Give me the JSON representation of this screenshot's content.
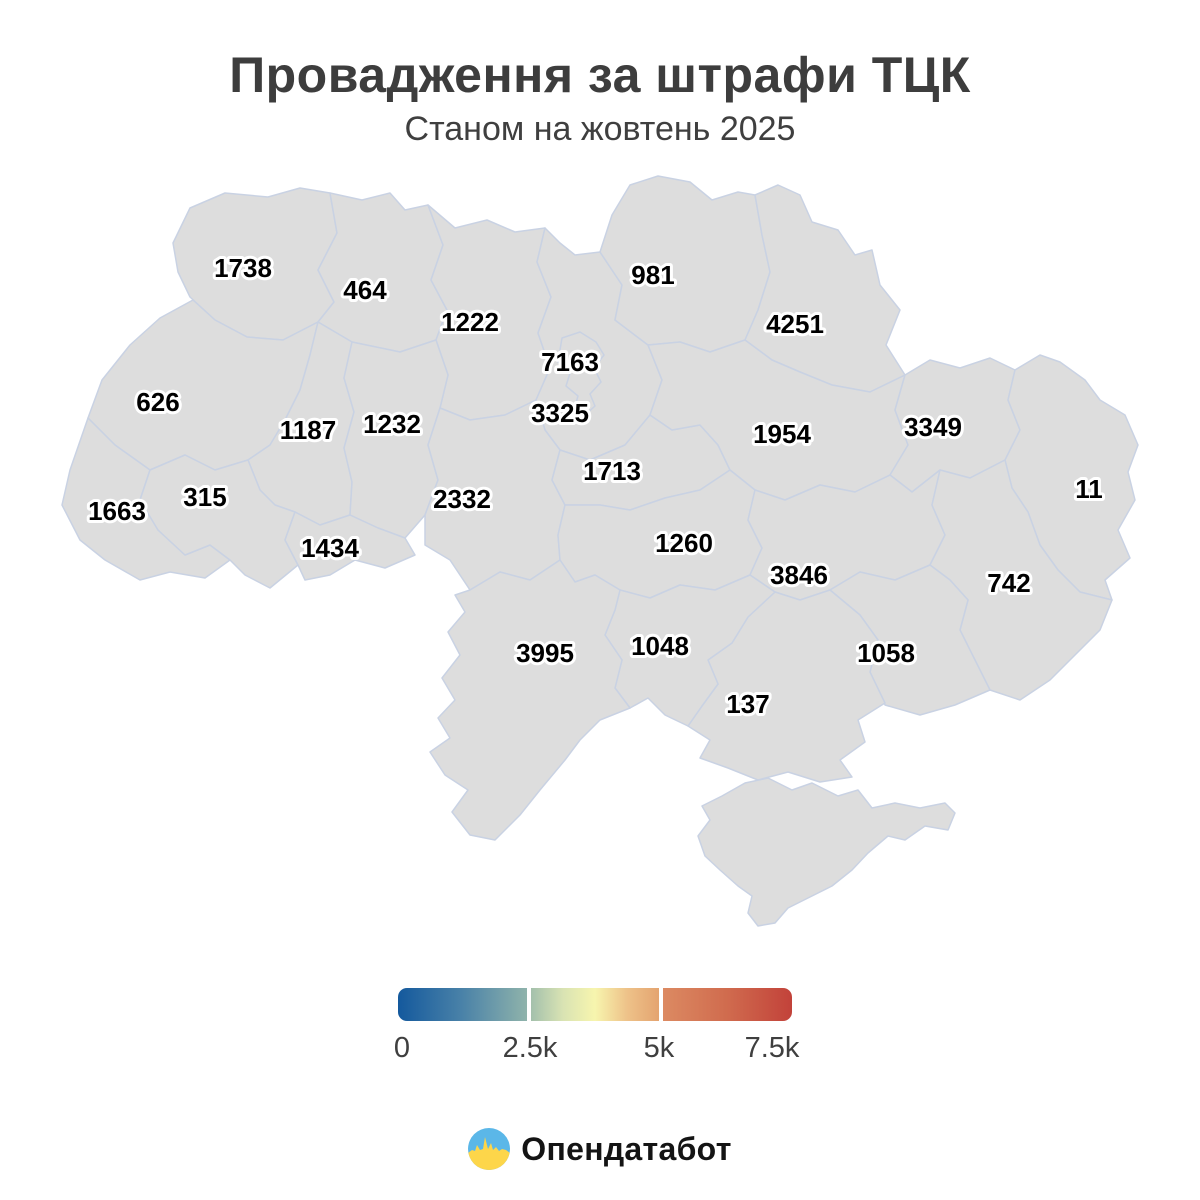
{
  "title": "Провадження за штрафи ТЦК",
  "subtitle": "Станом на жовтень 2025",
  "chart_data": {
    "type": "choropleth",
    "title": "Провадження за штрафи ТЦК",
    "subtitle": "Станом на жовтень 2025",
    "scale": {
      "min": 0,
      "max": 7500,
      "tick_labels": [
        "0",
        "2.5k",
        "5k",
        "7.5k"
      ],
      "palette": [
        "#14599d",
        "#8fb3ab",
        "#f7f5ae",
        "#e4a470",
        "#c2423a"
      ],
      "no_data_color": "#f4f5f7"
    },
    "regions": [
      {
        "id": "volyn",
        "value": 1738,
        "color": "#86aab4"
      },
      {
        "id": "rivne",
        "value": 464,
        "color": "#2273b1"
      },
      {
        "id": "zhytomyr",
        "value": 1222,
        "color": "#5b91b8"
      },
      {
        "id": "kyiv-oblast",
        "value": 3325,
        "color": "#e2e7c0"
      },
      {
        "id": "kyiv-city",
        "value": 7163,
        "color": "#c9453a"
      },
      {
        "id": "chernihiv",
        "value": 981,
        "color": "#3d7dae"
      },
      {
        "id": "sumy",
        "value": 4251,
        "color": "#f0d9a2"
      },
      {
        "id": "lviv",
        "value": 626,
        "color": "#2e77b0"
      },
      {
        "id": "ternopil",
        "value": 1187,
        "color": "#6b9bbd"
      },
      {
        "id": "khmelnytskyi",
        "value": 1232,
        "color": "#6899bc"
      },
      {
        "id": "vinnytsia",
        "value": 2332,
        "color": "#9eb5a6"
      },
      {
        "id": "cherkasy",
        "value": 1713,
        "color": "#83a9b3"
      },
      {
        "id": "poltava",
        "value": 1954,
        "color": "#8cadad"
      },
      {
        "id": "kharkiv",
        "value": 3349,
        "color": "#dde5ba"
      },
      {
        "id": "luhansk",
        "value": 11,
        "color": "#11589f"
      },
      {
        "id": "zakarpattia",
        "value": 1663,
        "color": "#7ea7b6"
      },
      {
        "id": "ivano-frankivsk",
        "value": 315,
        "color": "#1d6cab"
      },
      {
        "id": "chernivtsi",
        "value": 1434,
        "color": "#79a3b9"
      },
      {
        "id": "kirovohrad",
        "value": 1260,
        "color": "#5d92b6"
      },
      {
        "id": "dnipropetrovsk",
        "value": 3846,
        "color": "#f8f3b6"
      },
      {
        "id": "donetsk",
        "value": 742,
        "color": "#3c80b2"
      },
      {
        "id": "zaporizhzhia",
        "value": 1058,
        "color": "#4f89b3"
      },
      {
        "id": "mykolaiv",
        "value": 1048,
        "color": "#5890b4"
      },
      {
        "id": "odesa",
        "value": 3995,
        "color": "#f2e3ac"
      },
      {
        "id": "kherson",
        "value": 137,
        "color": "#145fa9"
      },
      {
        "id": "crimea",
        "value": null,
        "color": "#f4f5f7"
      }
    ]
  },
  "legend": {
    "tick_labels": [
      "0",
      "2.5k",
      "5k",
      "7.5k"
    ],
    "segments": [
      [
        "#14599d",
        "#4a82a8",
        "#8fb3ab"
      ],
      [
        "#a3c0ac",
        "#d9e3b3",
        "#f7f5ae",
        "#eec289",
        "#e4a470"
      ],
      [
        "#dc8a62",
        "#d06b4e",
        "#c2423a"
      ]
    ]
  },
  "footer": {
    "brand": "Опендатабот",
    "brand_blue": "#5bb7e8",
    "brand_yellow": "#fdd64a"
  }
}
